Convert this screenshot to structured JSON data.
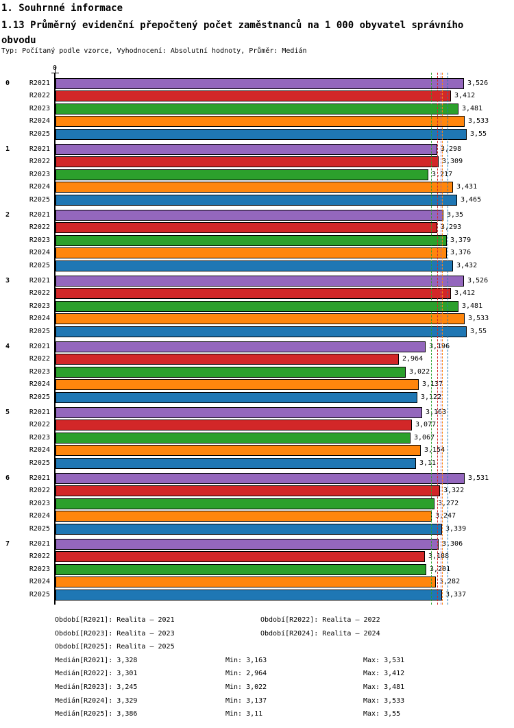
{
  "title": "1. Souhrnné informace",
  "subtitle": "1.13 Průměrný evidenční přepočtený počet zaměstnanců na 1 000 obyvatel správního obvodu",
  "type_line": "Typ: Počítaný podle vzorce, Vyhodnocení: Absolutní hodnoty, Průměr: Medián",
  "chart_data": {
    "type": "bar",
    "orientation": "horizontal",
    "title": "1.13 Průměrný evidenční přepočtený počet zaměstnanců na 1 000 obyvatel správního obvodu",
    "axis_zero_label": "0",
    "xlim": [
      0,
      3.95
    ],
    "grid": false,
    "categories": [
      "0",
      "1",
      "2",
      "3",
      "4",
      "5",
      "6",
      "7"
    ],
    "series": [
      {
        "name": "R2021",
        "color": "#9467bd",
        "median": 3.328,
        "values": [
          3.526,
          3.298,
          3.35,
          3.526,
          3.196,
          3.163,
          3.531,
          3.306
        ],
        "labels": [
          "3,526",
          "3,298",
          "3,35",
          "3,526",
          "3,196",
          "3,163",
          "3,531",
          "3,306"
        ]
      },
      {
        "name": "R2022",
        "color": "#d22728",
        "median": 3.301,
        "values": [
          3.412,
          3.309,
          3.293,
          3.412,
          2.964,
          3.077,
          3.322,
          3.188
        ],
        "labels": [
          "3,412",
          "3,309",
          "3,293",
          "3,412",
          "2,964",
          "3,077",
          "3,322",
          "3,188"
        ]
      },
      {
        "name": "R2023",
        "color": "#2ca02c",
        "median": 3.245,
        "values": [
          3.481,
          3.217,
          3.379,
          3.481,
          3.022,
          3.067,
          3.272,
          3.201
        ],
        "labels": [
          "3,481",
          "3,217",
          "3,379",
          "3,481",
          "3,022",
          "3,067",
          "3,272",
          "3,201"
        ]
      },
      {
        "name": "R2024",
        "color": "#ff860d",
        "median": 3.329,
        "values": [
          3.533,
          3.431,
          3.376,
          3.533,
          3.137,
          3.154,
          3.247,
          3.282
        ],
        "labels": [
          "3,533",
          "3,431",
          "3,376",
          "3,533",
          "3,137",
          "3,154",
          "3,247",
          "3,282"
        ]
      },
      {
        "name": "R2025",
        "color": "#1f77b4",
        "median": 3.386,
        "values": [
          3.55,
          3.465,
          3.432,
          3.55,
          3.122,
          3.11,
          3.339,
          3.337
        ],
        "labels": [
          "3,55",
          "3,465",
          "3,432",
          "3,55",
          "3,122",
          "3,11",
          "3,339",
          "3,337"
        ]
      }
    ]
  },
  "legend": {
    "periods": [
      "Období[R2021]: Realita – 2021",
      "Období[R2022]: Realita – 2022",
      "Období[R2023]: Realita – 2023",
      "Období[R2024]: Realita – 2024",
      "Období[R2025]: Realita – 2025"
    ],
    "stats": [
      {
        "median": "Medián[R2021]: 3,328",
        "min": "Min: 3,163",
        "max": "Max: 3,531"
      },
      {
        "median": "Medián[R2022]: 3,301",
        "min": "Min: 2,964",
        "max": "Max: 3,412"
      },
      {
        "median": "Medián[R2023]: 3,245",
        "min": "Min: 3,022",
        "max": "Max: 3,481"
      },
      {
        "median": "Medián[R2024]: 3,329",
        "min": "Min: 3,137",
        "max": "Max: 3,533"
      },
      {
        "median": "Medián[R2025]: 3,386",
        "min": "Min: 3,11",
        "max": "Max: 3,55"
      }
    ]
  }
}
